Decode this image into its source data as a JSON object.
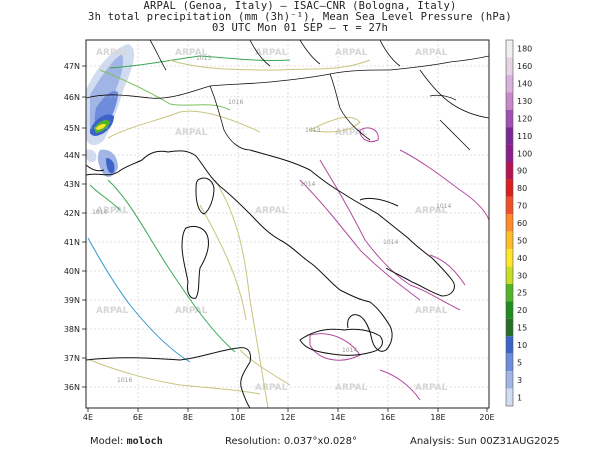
{
  "header": {
    "line1": "ARPAL (Genoa, Italy)  —  ISAC–CNR (Bologna, Italy)",
    "line2": "3h total precipitation (mm (3h)⁻¹), Mean Sea Level Pressure (hPa)",
    "line3": "03 UTC Mon 01 SEP  —  τ = 27h"
  },
  "map": {
    "lat_labels": [
      "47N",
      "46N",
      "45N",
      "44N",
      "43N",
      "42N",
      "41N",
      "40N",
      "39N",
      "38N",
      "37N",
      "36N"
    ],
    "lon_labels": [
      "4E",
      "6E",
      "8E",
      "10E",
      "12E",
      "14E",
      "16E",
      "18E",
      "20E"
    ],
    "watermark": "ARPAL",
    "isobar_labels": [
      "1014",
      "1016",
      "1013",
      "1014",
      "1014",
      "1014",
      "1014",
      "1013",
      "1016"
    ]
  },
  "colorbar": {
    "levels": [
      "180",
      "160",
      "140",
      "130",
      "120",
      "110",
      "100",
      "90",
      "80",
      "70",
      "60",
      "50",
      "40",
      "30",
      "25",
      "20",
      "15",
      "10",
      "5",
      "3",
      "1"
    ],
    "colors": [
      "#f0f0f0",
      "#e6d4e6",
      "#d7b2dc",
      "#c887c8",
      "#a050b4",
      "#7a2896",
      "#8c1e8c",
      "#b41450",
      "#dc1e1e",
      "#f05028",
      "#ff8c28",
      "#ffbe28",
      "#ffe628",
      "#c8dc28",
      "#50b428",
      "#1e8c1e",
      "#286e28",
      "#3c64c8",
      "#6e8cdc",
      "#a0b4e6",
      "#d2dcf0"
    ]
  },
  "footer": {
    "model_label": "Model:",
    "model_value": "moloch",
    "resolution_label": "Resolution:",
    "resolution_value": "0.037°x0.028°",
    "analysis_label": "Analysis:",
    "analysis_value": "Sun 00Z31AUG2025"
  }
}
